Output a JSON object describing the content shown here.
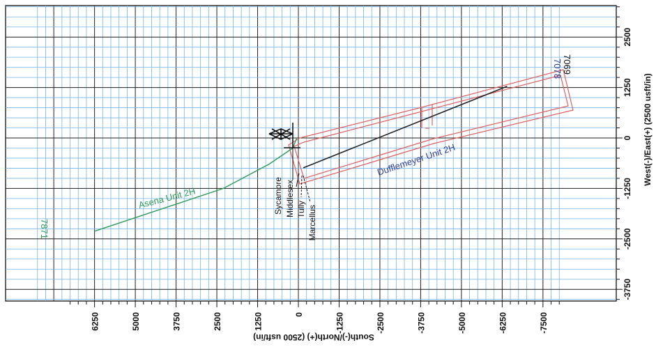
{
  "chart_data": {
    "type": "plan-view well plot",
    "x_axis": {
      "label": "South(-)/North(+) (2500 usft/in)",
      "ticks": [
        "6250",
        "5000",
        "3750",
        "2500",
        "1250",
        "0",
        "-1250",
        "-2500",
        "-3750",
        "-5000",
        "-6250",
        "-7500"
      ]
    },
    "y_axis": {
      "label": "West(-)/East(+) (2500 usft/in)",
      "ticks": [
        "2500",
        "1250",
        "0",
        "-1250",
        "-2500",
        "-3750"
      ]
    },
    "grid": true,
    "wells": [
      {
        "name": "Asena Unit 2H",
        "td_label": "7871",
        "color": "#2e9b57",
        "points": [
          [
            6250,
            -2310
          ],
          [
            2300,
            -1250
          ],
          [
            900,
            -650
          ],
          [
            170,
            -250
          ],
          [
            50,
            0
          ]
        ]
      },
      {
        "name": "Dufflemeyer Unit 2H",
        "td_labels": [
          "7078",
          "7069"
        ],
        "color": "#2f3f9a",
        "points": [
          [
            -150,
            -740
          ],
          [
            -6400,
            1280
          ]
        ]
      }
    ],
    "formations": [
      "Sycamore",
      "Middlesex",
      "Tully",
      "Marcellus"
    ],
    "colors": {
      "grid_minor": "#74b4e6",
      "grid_major": "#1f1f1f",
      "lease_outline": "#e06060"
    }
  }
}
